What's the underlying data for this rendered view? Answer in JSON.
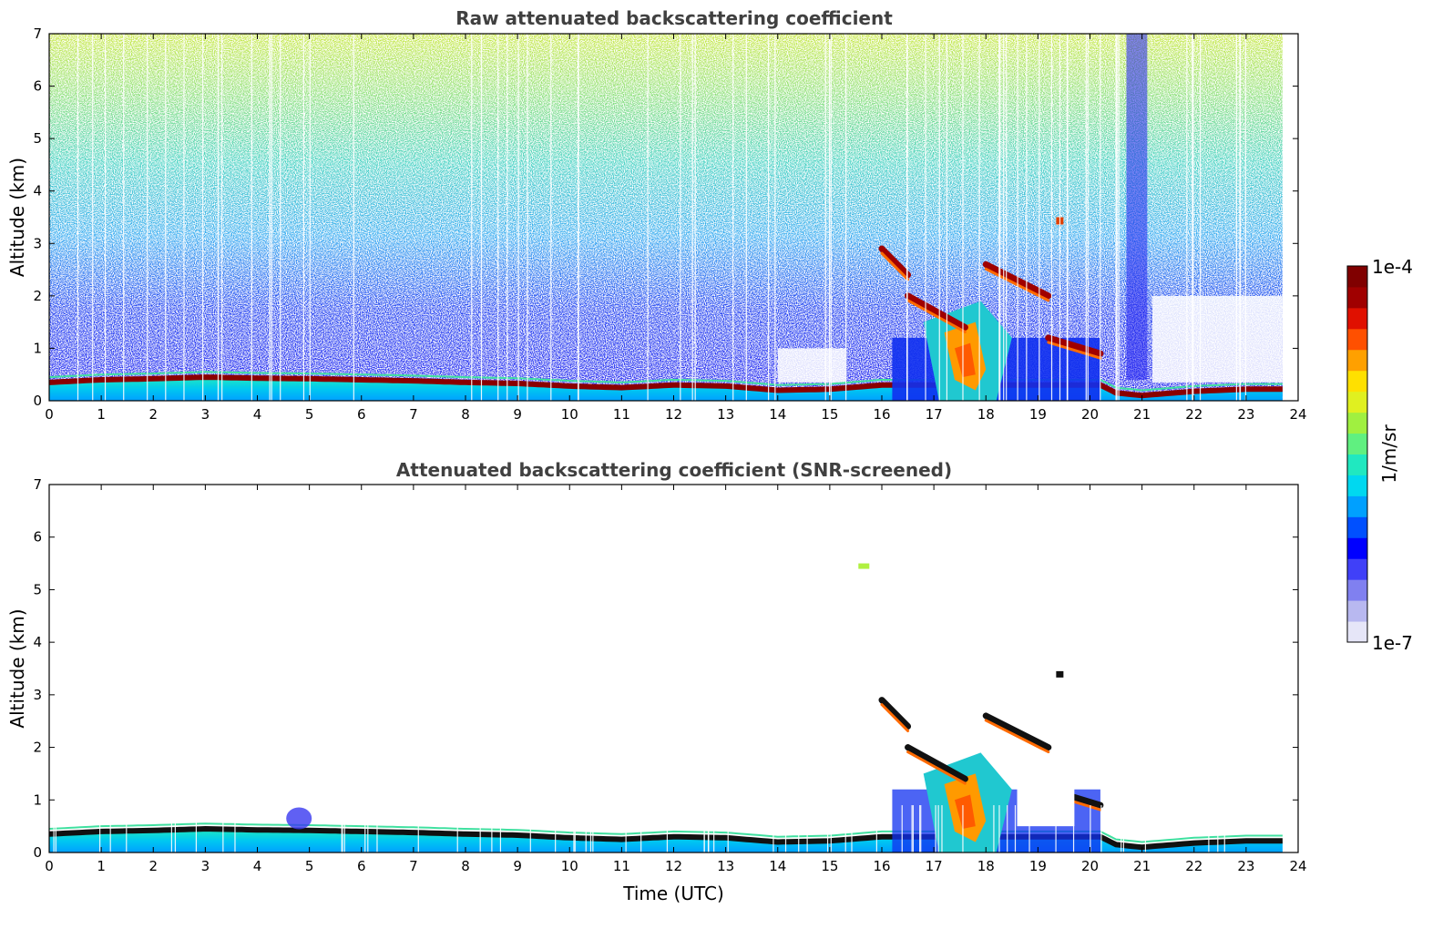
{
  "colors": {
    "colormap": [
      "#e6e6f8",
      "#b8b8f0",
      "#8080f0",
      "#4040f8",
      "#0000ff",
      "#0050ff",
      "#00a0ff",
      "#00d8f0",
      "#20e8c0",
      "#60f080",
      "#a0f040",
      "#e0f020",
      "#ffe000",
      "#ffa000",
      "#ff5000",
      "#e01000",
      "#a00000",
      "#800000"
    ],
    "frame": "#000000",
    "title": "#404040"
  },
  "chart_data": [
    {
      "type": "heatmap",
      "title": "Raw attenuated backscattering coefficient",
      "xlabel": "",
      "ylabel": "Altitude (km)",
      "xlim": [
        0,
        24
      ],
      "ylim": [
        0,
        7
      ],
      "xticks": [
        "0",
        "1",
        "2",
        "3",
        "4",
        "5",
        "6",
        "7",
        "8",
        "9",
        "10",
        "11",
        "12",
        "13",
        "14",
        "15",
        "16",
        "17",
        "18",
        "19",
        "20",
        "21",
        "22",
        "23",
        "24"
      ],
      "yticks": [
        "0",
        "1",
        "2",
        "3",
        "4",
        "5",
        "6",
        "7"
      ],
      "data_end_time": 23.7,
      "boundary_layer_top_km": [
        [
          0,
          0.35
        ],
        [
          1,
          0.4
        ],
        [
          2,
          0.42
        ],
        [
          3,
          0.45
        ],
        [
          4,
          0.43
        ],
        [
          5,
          0.42
        ],
        [
          6,
          0.4
        ],
        [
          7,
          0.38
        ],
        [
          8,
          0.35
        ],
        [
          9,
          0.33
        ],
        [
          10,
          0.28
        ],
        [
          11,
          0.25
        ],
        [
          12,
          0.3
        ],
        [
          13,
          0.28
        ],
        [
          14,
          0.2
        ],
        [
          15,
          0.22
        ],
        [
          16,
          0.3
        ],
        [
          20.2,
          0.3
        ],
        [
          20.5,
          0.15
        ],
        [
          21,
          0.1
        ],
        [
          22,
          0.18
        ],
        [
          23,
          0.22
        ],
        [
          23.7,
          0.22
        ]
      ],
      "cloud_layers": [
        {
          "x": [
            16.0,
            16.5
          ],
          "y": [
            2.9,
            2.4
          ]
        },
        {
          "x": [
            16.5,
            17.6
          ],
          "y": [
            2.0,
            1.4
          ]
        },
        {
          "x": [
            18.0,
            19.2
          ],
          "y": [
            2.6,
            2.0
          ]
        },
        {
          "x": [
            19.2,
            20.2
          ],
          "y": [
            1.2,
            0.9
          ]
        }
      ],
      "colorbar": {
        "min_label": "1e-7",
        "max_label": "1e-4",
        "label": "1/m/sr",
        "scale": "log"
      }
    },
    {
      "type": "heatmap",
      "title": "Attenuated backscattering coefficient (SNR-screened)",
      "xlabel": "Time (UTC)",
      "ylabel": "Altitude (km)",
      "xlim": [
        0,
        24
      ],
      "ylim": [
        0,
        7
      ],
      "xticks": [
        "0",
        "1",
        "2",
        "3",
        "4",
        "5",
        "6",
        "7",
        "8",
        "9",
        "10",
        "11",
        "12",
        "13",
        "14",
        "15",
        "16",
        "17",
        "18",
        "19",
        "20",
        "21",
        "22",
        "23",
        "24"
      ],
      "yticks": [
        "0",
        "1",
        "2",
        "3",
        "4",
        "5",
        "6",
        "7"
      ],
      "data_end_time": 23.7,
      "colorbar": {
        "min_label": "1e-7",
        "max_label": "1e-4",
        "label": "1/m/sr",
        "scale": "log"
      }
    }
  ]
}
